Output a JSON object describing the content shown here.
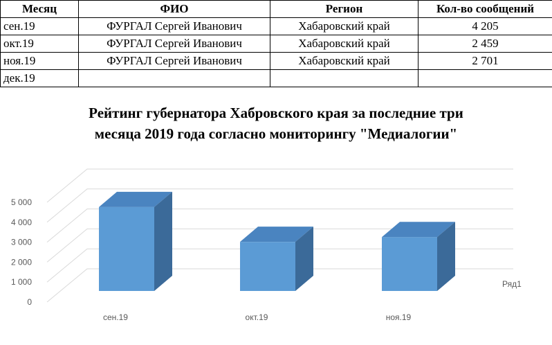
{
  "table": {
    "headers": [
      "Месяц",
      "ФИО",
      "Регион",
      "Кол-во сообщений"
    ],
    "rows": [
      [
        "сен.19",
        "ФУРГАЛ Сергей Иванович",
        "Хабаровский край",
        "4 205"
      ],
      [
        "окт.19",
        "ФУРГАЛ Сергей Иванович",
        "Хабаровский край",
        "2 459"
      ],
      [
        "ноя.19",
        "ФУРГАЛ Сергей Иванович",
        "Хабаровский край",
        "2 701"
      ],
      [
        "дек.19",
        "",
        "",
        ""
      ]
    ]
  },
  "chart_data": {
    "type": "bar",
    "title_lines": [
      "Рейтинг губернатора Хабровского края за последние три",
      "месяца 2019 года согласно мониторингу \"Медиалогии\""
    ],
    "categories": [
      "сен.19",
      "окт.19",
      "ноя.19"
    ],
    "series": [
      {
        "name": "Ряд1",
        "values": [
          4205,
          2459,
          2701
        ]
      }
    ],
    "yticks": [
      "0",
      "1 000",
      "2 000",
      "3 000",
      "4 000",
      "5 000"
    ],
    "ylim": [
      0,
      5000
    ],
    "grid": true,
    "legend": "right",
    "bar_color": "#5b9bd5",
    "bar_top_color": "#4a84c0",
    "bar_side_color": "#3b6a99"
  }
}
